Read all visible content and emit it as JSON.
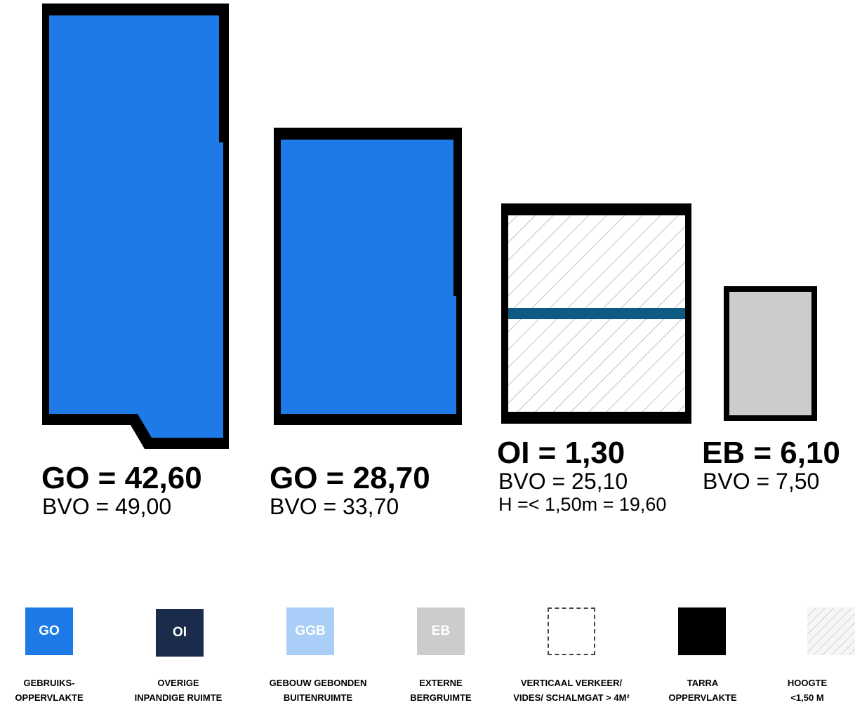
{
  "colors": {
    "go": "#1e7ae6",
    "oi": "#1b2b4b",
    "ggb": "#a9cef8",
    "eb": "#cccccc",
    "tarra": "#000000",
    "stripe": "#0d5a82",
    "hatch": "#9a9a9a"
  },
  "plans": [
    {
      "title": "GO = 42,60",
      "lines": [
        "BVO = 49,00"
      ]
    },
    {
      "title": "GO = 28,70",
      "lines": [
        "BVO = 33,70"
      ]
    },
    {
      "title": "OI = 1,30",
      "lines": [
        "BVO = 25,10",
        "H =< 1,50m = 19,60"
      ]
    },
    {
      "title": "EB = 6,10",
      "lines": [
        "BVO = 7,50"
      ]
    }
  ],
  "legend": [
    {
      "swatch": "GO",
      "icon": "go-swatch",
      "label": [
        "GEBRUIKS-",
        "OPPERVLAKTE"
      ]
    },
    {
      "swatch": "OI",
      "icon": "oi-swatch",
      "label": [
        "OVERIGE",
        "INPANDIGE RUIMTE"
      ]
    },
    {
      "swatch": "GGB",
      "icon": "ggb-swatch",
      "label": [
        "GEBOUW GEBONDEN",
        "BUITENRUIMTE"
      ]
    },
    {
      "swatch": "EB",
      "icon": "eb-swatch",
      "label": [
        "EXTERNE",
        "BERGRUIMTE"
      ]
    },
    {
      "swatch": "",
      "icon": "dashed-square-swatch",
      "label": [
        "VERTICAAL VERKEER/",
        "VIDES/ SCHALMGAT > 4M²"
      ]
    },
    {
      "swatch": "",
      "icon": "black-square-swatch",
      "label": [
        "TARRA",
        "OPPERVLAKTE"
      ]
    },
    {
      "swatch": "",
      "icon": "hatched-square-swatch",
      "label": [
        "HOOGTE",
        "<1,50 M"
      ]
    }
  ]
}
